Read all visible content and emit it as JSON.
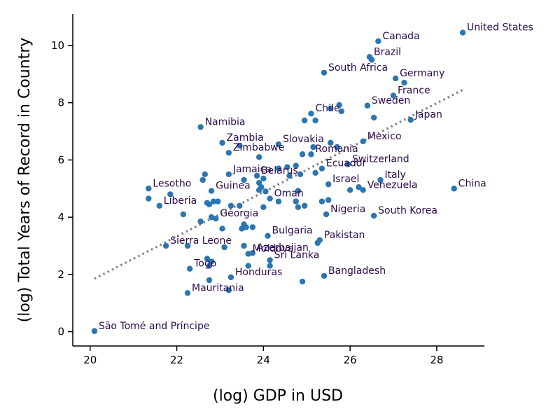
{
  "chart_data": {
    "type": "scatter",
    "xlabel": "(log) GDP in USD",
    "ylabel": "(log) Total Years of Record in Country",
    "xlim": [
      19.6,
      29.1
    ],
    "ylim": [
      -0.5,
      11.1
    ],
    "xticks": [
      20,
      22,
      24,
      26,
      28
    ],
    "yticks": [
      0,
      2,
      4,
      6,
      8,
      10
    ],
    "grid": false,
    "legend": "none",
    "colors": {
      "points": "#2a76b4",
      "labels": "#2d0a57",
      "trend": "#808080"
    },
    "trend_line": {
      "x": [
        20.1,
        28.6
      ],
      "y": [
        1.85,
        8.45
      ]
    },
    "points": [
      {
        "x": 28.6,
        "y": 10.45,
        "label": "United States"
      },
      {
        "x": 26.65,
        "y": 10.15,
        "label": "Canada"
      },
      {
        "x": 26.45,
        "y": 9.6,
        "label": "Brazil"
      },
      {
        "x": 26.5,
        "y": 9.5
      },
      {
        "x": 25.4,
        "y": 9.05,
        "label": "South Africa"
      },
      {
        "x": 27.05,
        "y": 8.85,
        "label": "Germany"
      },
      {
        "x": 27.25,
        "y": 8.7
      },
      {
        "x": 27.0,
        "y": 8.25,
        "label": "France"
      },
      {
        "x": 26.4,
        "y": 7.9,
        "label": "Sweden"
      },
      {
        "x": 25.75,
        "y": 7.92
      },
      {
        "x": 25.55,
        "y": 7.8
      },
      {
        "x": 25.8,
        "y": 7.7
      },
      {
        "x": 25.1,
        "y": 7.62,
        "label": "Chile"
      },
      {
        "x": 24.95,
        "y": 7.38
      },
      {
        "x": 25.2,
        "y": 7.38
      },
      {
        "x": 26.55,
        "y": 7.48
      },
      {
        "x": 27.4,
        "y": 7.4,
        "label": "Japan"
      },
      {
        "x": 22.55,
        "y": 7.15,
        "label": "Namibia"
      },
      {
        "x": 26.3,
        "y": 6.65,
        "label": "Mexico"
      },
      {
        "x": 23.05,
        "y": 6.6,
        "label": "Zambia"
      },
      {
        "x": 24.35,
        "y": 6.55,
        "label": "Slovakia"
      },
      {
        "x": 25.55,
        "y": 6.6
      },
      {
        "x": 25.7,
        "y": 6.45
      },
      {
        "x": 25.15,
        "y": 6.45
      },
      {
        "x": 23.2,
        "y": 6.25,
        "label": "Zimbabwe"
      },
      {
        "x": 23.45,
        "y": 6.5
      },
      {
        "x": 25.1,
        "y": 6.2,
        "label": "Romania"
      },
      {
        "x": 24.9,
        "y": 6.2
      },
      {
        "x": 23.9,
        "y": 6.1
      },
      {
        "x": 25.95,
        "y": 5.85,
        "label": "Switzerland"
      },
      {
        "x": 24.75,
        "y": 5.8
      },
      {
        "x": 24.55,
        "y": 5.75
      },
      {
        "x": 25.35,
        "y": 5.7,
        "label": "Ecuador"
      },
      {
        "x": 25.2,
        "y": 5.55
      },
      {
        "x": 24.35,
        "y": 5.7
      },
      {
        "x": 23.2,
        "y": 5.5,
        "label": "Jamaica"
      },
      {
        "x": 22.65,
        "y": 5.5
      },
      {
        "x": 23.85,
        "y": 5.45,
        "label": "Belarus"
      },
      {
        "x": 24.0,
        "y": 5.35
      },
      {
        "x": 24.6,
        "y": 5.45
      },
      {
        "x": 23.55,
        "y": 5.3
      },
      {
        "x": 22.6,
        "y": 5.3
      },
      {
        "x": 24.85,
        "y": 5.5
      },
      {
        "x": 26.7,
        "y": 5.3,
        "label": "Italy"
      },
      {
        "x": 25.5,
        "y": 5.15,
        "label": "Israel"
      },
      {
        "x": 23.9,
        "y": 5.2
      },
      {
        "x": 23.95,
        "y": 5.05
      },
      {
        "x": 21.35,
        "y": 5.0,
        "label": "Lesotho"
      },
      {
        "x": 22.8,
        "y": 4.92,
        "label": "Guinea"
      },
      {
        "x": 23.9,
        "y": 4.95
      },
      {
        "x": 24.05,
        "y": 4.9
      },
      {
        "x": 24.8,
        "y": 4.92
      },
      {
        "x": 26.0,
        "y": 4.95
      },
      {
        "x": 26.2,
        "y": 5.05
      },
      {
        "x": 26.3,
        "y": 4.95,
        "label": "Venezuela"
      },
      {
        "x": 28.4,
        "y": 5.0,
        "label": "China"
      },
      {
        "x": 24.15,
        "y": 4.65,
        "label": "Oman"
      },
      {
        "x": 21.85,
        "y": 4.8
      },
      {
        "x": 21.35,
        "y": 4.65
      },
      {
        "x": 22.95,
        "y": 4.55
      },
      {
        "x": 22.85,
        "y": 4.55
      },
      {
        "x": 22.75,
        "y": 4.45
      },
      {
        "x": 22.7,
        "y": 4.5
      },
      {
        "x": 23.45,
        "y": 4.4
      },
      {
        "x": 23.25,
        "y": 4.4
      },
      {
        "x": 24.35,
        "y": 4.55
      },
      {
        "x": 24.75,
        "y": 4.55
      },
      {
        "x": 24.95,
        "y": 4.4
      },
      {
        "x": 24.8,
        "y": 4.35
      },
      {
        "x": 25.35,
        "y": 4.55
      },
      {
        "x": 25.5,
        "y": 4.6
      },
      {
        "x": 21.6,
        "y": 4.4,
        "label": "Liberia"
      },
      {
        "x": 24.0,
        "y": 4.35
      },
      {
        "x": 25.45,
        "y": 4.1,
        "label": "Nigeria"
      },
      {
        "x": 26.55,
        "y": 4.05,
        "label": "South Korea"
      },
      {
        "x": 22.15,
        "y": 4.1
      },
      {
        "x": 22.9,
        "y": 3.95,
        "label": "Georgia"
      },
      {
        "x": 22.8,
        "y": 4.0
      },
      {
        "x": 22.55,
        "y": 3.85
      },
      {
        "x": 23.05,
        "y": 3.6
      },
      {
        "x": 23.55,
        "y": 3.75
      },
      {
        "x": 23.6,
        "y": 3.65
      },
      {
        "x": 23.5,
        "y": 3.6
      },
      {
        "x": 23.75,
        "y": 3.65
      },
      {
        "x": 24.1,
        "y": 3.35,
        "label": "Bulgaria"
      },
      {
        "x": 25.3,
        "y": 3.2,
        "label": "Pakistan"
      },
      {
        "x": 25.25,
        "y": 3.1
      },
      {
        "x": 21.75,
        "y": 3.0,
        "label": "Sierra Leone"
      },
      {
        "x": 22.25,
        "y": 3.0
      },
      {
        "x": 23.1,
        "y": 2.95
      },
      {
        "x": 23.55,
        "y": 3.0
      },
      {
        "x": 23.65,
        "y": 2.72,
        "label": "Moldova"
      },
      {
        "x": 23.75,
        "y": 2.75,
        "label": "Azerbaijan"
      },
      {
        "x": 24.15,
        "y": 2.5,
        "label": "Sri Lanka"
      },
      {
        "x": 24.15,
        "y": 2.3
      },
      {
        "x": 23.65,
        "y": 2.3
      },
      {
        "x": 22.7,
        "y": 2.55
      },
      {
        "x": 22.8,
        "y": 2.45
      },
      {
        "x": 22.75,
        "y": 2.3
      },
      {
        "x": 22.3,
        "y": 2.2,
        "label": "Togo"
      },
      {
        "x": 23.25,
        "y": 1.9,
        "label": "Honduras"
      },
      {
        "x": 25.4,
        "y": 1.95,
        "label": "Bangladesh"
      },
      {
        "x": 22.75,
        "y": 1.8
      },
      {
        "x": 24.9,
        "y": 1.75
      },
      {
        "x": 22.25,
        "y": 1.35,
        "label": "Mauritania"
      },
      {
        "x": 23.2,
        "y": 1.45
      },
      {
        "x": 20.1,
        "y": 0.02,
        "label": "São Tomé and Príncipe"
      }
    ]
  }
}
